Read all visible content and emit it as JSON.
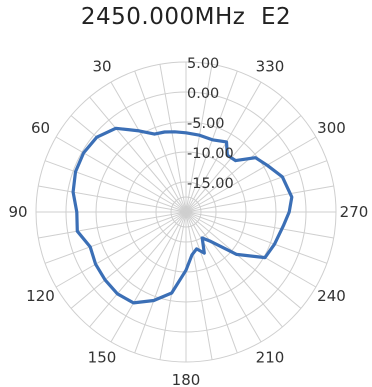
{
  "chart_data": {
    "type": "polar-line",
    "title": "2450.000MHz  E2",
    "radial_axis": {
      "min": -20,
      "max": 5,
      "ticks": [
        -15,
        -10,
        -5,
        0,
        5
      ],
      "tick_labels": [
        "-15.00",
        "-10.00",
        "-5.00",
        "0.00",
        "5.00"
      ]
    },
    "angular_axis": {
      "direction": "counterclockwise",
      "zero_at": "top",
      "step_degrees": 10,
      "tick_labels": [
        {
          "angle": 30,
          "label": "30"
        },
        {
          "angle": 60,
          "label": "60"
        },
        {
          "angle": 90,
          "label": "90"
        },
        {
          "angle": 120,
          "label": "120"
        },
        {
          "angle": 150,
          "label": "150"
        },
        {
          "angle": 180,
          "label": "180"
        },
        {
          "angle": 210,
          "label": "210"
        },
        {
          "angle": 240,
          "label": "240"
        },
        {
          "angle": 270,
          "label": "270"
        },
        {
          "angle": 300,
          "label": "300"
        },
        {
          "angle": 330,
          "label": "330"
        }
      ]
    },
    "grid": true,
    "series": [
      {
        "color": "#3b6fb6",
        "points": [
          [
            0,
            -6.8
          ],
          [
            8,
            -6.5
          ],
          [
            15,
            -6.2
          ],
          [
            22,
            -6.0
          ],
          [
            30,
            -4.4
          ],
          [
            40,
            -1.8
          ],
          [
            50,
            -0.6
          ],
          [
            60,
            -0.3
          ],
          [
            70,
            -0.4
          ],
          [
            80,
            -0.9
          ],
          [
            90,
            -1.8
          ],
          [
            100,
            -1.6
          ],
          [
            110,
            -3.0
          ],
          [
            120,
            -2.6
          ],
          [
            130,
            -2.4
          ],
          [
            140,
            -2.2
          ],
          [
            150,
            -2.5
          ],
          [
            160,
            -4.3
          ],
          [
            170,
            -6.3
          ],
          [
            180,
            -10.3
          ],
          [
            188,
            -12.8
          ],
          [
            196,
            -13.6
          ],
          [
            204,
            -12.5
          ],
          [
            212,
            -14.9
          ],
          [
            220,
            -13.6
          ],
          [
            230,
            -9.0
          ],
          [
            240,
            -4.8
          ],
          [
            250,
            -4.3
          ],
          [
            262,
            -3.6
          ],
          [
            270,
            -2.8
          ],
          [
            278,
            -2.2
          ],
          [
            290,
            -2.9
          ],
          [
            300,
            -4.4
          ],
          [
            308,
            -5.3
          ],
          [
            316,
            -8.1
          ],
          [
            324,
            -8.3
          ],
          [
            330,
            -6.5
          ],
          [
            340,
            -7.2
          ],
          [
            350,
            -7.0
          ],
          [
            360,
            -6.8
          ]
        ]
      }
    ]
  }
}
